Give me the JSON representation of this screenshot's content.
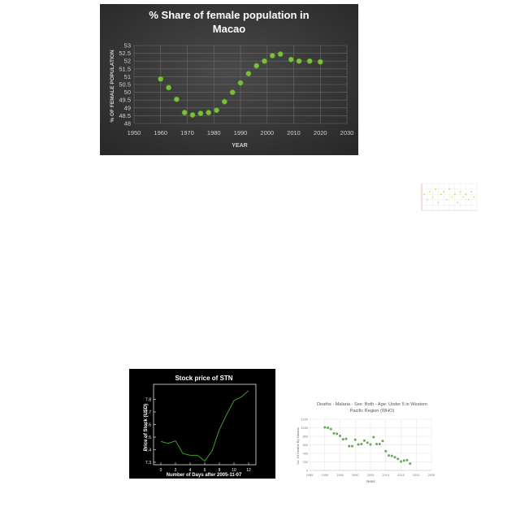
{
  "chart_data": [
    {
      "type": "scatter",
      "title_line1": "% Share of female population in",
      "title_line2": "Macao",
      "xlabel": "YEAR",
      "ylabel": "% OF FEMALE POPULATION",
      "xlim": [
        1950,
        2030
      ],
      "ylim": [
        48,
        53
      ],
      "xticks": [
        "1950",
        "1960",
        "1970",
        "1980",
        "1990",
        "2000",
        "2010",
        "2020",
        "2030"
      ],
      "yticks": [
        "48",
        "48.5",
        "49",
        "49.5",
        "50",
        "50.5",
        "51",
        "51.5",
        "52",
        "52.5",
        "53"
      ],
      "grid": true,
      "marker_color": "#7bbf3c",
      "background": "#3a3a3a",
      "x": [
        1960,
        1963,
        1966,
        1969,
        1972,
        1975,
        1978,
        1981,
        1984,
        1987,
        1990,
        1993,
        1996,
        1999,
        2002,
        2005,
        2009,
        2012,
        2016,
        2020
      ],
      "y": [
        50.85,
        50.3,
        49.55,
        48.7,
        48.55,
        48.65,
        48.7,
        48.85,
        49.4,
        50.0,
        50.6,
        51.2,
        51.7,
        52.0,
        52.35,
        52.45,
        52.1,
        52.0,
        52.0,
        51.95
      ]
    },
    {
      "type": "scatter",
      "marker_color": "#f2c94c",
      "grid": true,
      "xlim": [
        0,
        20
      ],
      "ylim": [
        0,
        10
      ],
      "x": [
        1,
        2,
        3,
        4,
        5,
        6,
        7,
        8,
        9,
        10,
        11,
        12,
        13,
        14,
        15,
        16,
        17,
        18,
        19
      ],
      "y": [
        6,
        4,
        7,
        5,
        8,
        3,
        6,
        7,
        4,
        8,
        5,
        6,
        3,
        7,
        5,
        6,
        4,
        7,
        5
      ]
    },
    {
      "type": "line",
      "title": "Stock price of STN",
      "xlabel": "Number of Days after 2005-11-07",
      "ylabel": "Price of Stock (USD)",
      "xlim": [
        -1,
        13
      ],
      "ylim": [
        7.28,
        7.92
      ],
      "xticks": [
        "0",
        "2",
        "4",
        "6",
        "8",
        "10",
        "12"
      ],
      "yticks": [
        "7.3",
        "7.4",
        "7.5",
        "7.6",
        "7.7",
        "7.8"
      ],
      "line_color": "#3d9e2a",
      "background": "#000000",
      "x": [
        0,
        1,
        2,
        3,
        4,
        5,
        6,
        7,
        8,
        9,
        10,
        11,
        12
      ],
      "y": [
        7.465,
        7.45,
        7.47,
        7.37,
        7.355,
        7.355,
        7.31,
        7.39,
        7.56,
        7.68,
        7.79,
        7.82,
        7.87
      ]
    },
    {
      "type": "scatter",
      "title_line1": "Deaths - Malaria - Sex: Both - Age: Under 5 in Western",
      "title_line2": "Pacific Region (WHO)",
      "xlabel": "Years",
      "ylabel": "No. Of Deaths By Malaria",
      "xlim": [
        1985,
        2025
      ],
      "ylim": [
        0,
        1200
      ],
      "xticks": [
        "1985",
        "1990",
        "1995",
        "2000",
        "2005",
        "2010",
        "2015",
        "2020",
        "2025"
      ],
      "yticks": [
        "0",
        "200",
        "400",
        "600",
        "800",
        "1000",
        "1200"
      ],
      "grid": true,
      "marker_color": "#6aa84f",
      "x": [
        1990,
        1991,
        1992,
        1993,
        1994,
        1995,
        1996,
        1997,
        1998,
        1999,
        2000,
        2001,
        2002,
        2003,
        2004,
        2005,
        2006,
        2007,
        2008,
        2009,
        2010,
        2011,
        2012,
        2013,
        2014,
        2015,
        2016,
        2017,
        2018
      ],
      "y": [
        1010,
        1000,
        970,
        870,
        860,
        810,
        730,
        740,
        570,
        570,
        720,
        610,
        620,
        700,
        650,
        610,
        780,
        620,
        620,
        690,
        450,
        350,
        340,
        310,
        270,
        210,
        230,
        240,
        160
      ]
    }
  ]
}
